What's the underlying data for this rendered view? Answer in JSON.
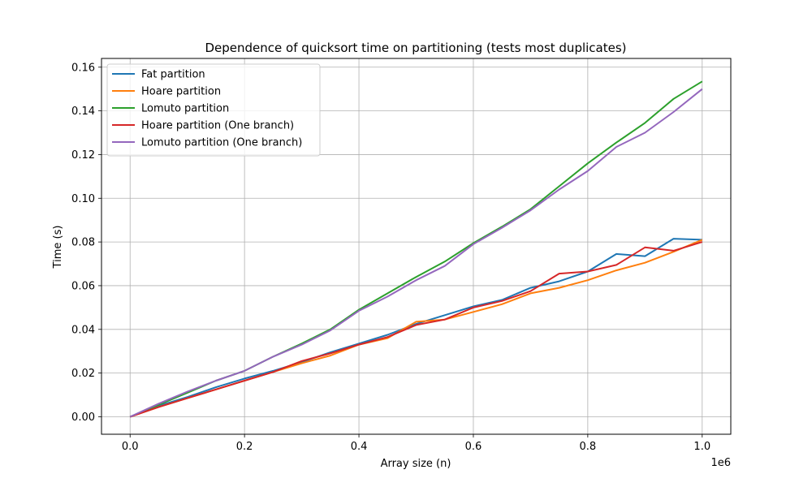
{
  "chart_data": {
    "type": "line",
    "title": "Dependence of quicksort time on partitioning (tests most duplicates)",
    "xlabel": "Array size (n)",
    "ylabel": "Time (s)",
    "x_offset_label": "1e6",
    "xlim": [
      -0.05,
      1.05
    ],
    "ylim": [
      -0.008,
      0.164
    ],
    "x_ticks": [
      0.0,
      0.2,
      0.4,
      0.6,
      0.8,
      1.0
    ],
    "x_tick_labels": [
      "0.0",
      "0.2",
      "0.4",
      "0.6",
      "0.8",
      "1.0"
    ],
    "y_ticks": [
      0.0,
      0.02,
      0.04,
      0.06,
      0.08,
      0.1,
      0.12,
      0.14,
      0.16
    ],
    "y_tick_labels": [
      "0.00",
      "0.02",
      "0.04",
      "0.06",
      "0.08",
      "0.10",
      "0.12",
      "0.14",
      "0.16"
    ],
    "grid": true,
    "legend_position": "top-left",
    "x": [
      0.0,
      0.05,
      0.1,
      0.15,
      0.2,
      0.25,
      0.3,
      0.35,
      0.4,
      0.45,
      0.5,
      0.55,
      0.6,
      0.65,
      0.7,
      0.75,
      0.8,
      0.85,
      0.9,
      0.95,
      1.0
    ],
    "series": [
      {
        "name": "Fat partition",
        "color": "#1f77b4",
        "values": [
          0.0,
          0.005,
          0.009,
          0.0135,
          0.0175,
          0.021,
          0.025,
          0.0295,
          0.0335,
          0.0375,
          0.0425,
          0.0465,
          0.0505,
          0.0535,
          0.059,
          0.062,
          0.0665,
          0.0745,
          0.0735,
          0.0815,
          0.081
        ]
      },
      {
        "name": "Hoare partition",
        "color": "#ff7f0e",
        "values": [
          0.0,
          0.0045,
          0.0085,
          0.0125,
          0.0165,
          0.0205,
          0.0245,
          0.028,
          0.033,
          0.036,
          0.0435,
          0.0445,
          0.048,
          0.0515,
          0.0565,
          0.059,
          0.0625,
          0.067,
          0.0705,
          0.0755,
          0.081
        ]
      },
      {
        "name": "Lomuto partition",
        "color": "#2ca02c",
        "values": [
          0.0,
          0.0055,
          0.011,
          0.0165,
          0.021,
          0.0275,
          0.0335,
          0.04,
          0.049,
          0.0565,
          0.064,
          0.071,
          0.0795,
          0.087,
          0.095,
          0.1055,
          0.116,
          0.1255,
          0.1345,
          0.1455,
          0.1535
        ]
      },
      {
        "name": "Hoare partition (One branch)",
        "color": "#d62728",
        "values": [
          0.0,
          0.0045,
          0.0085,
          0.0125,
          0.0165,
          0.0205,
          0.0255,
          0.029,
          0.033,
          0.0365,
          0.042,
          0.0445,
          0.05,
          0.053,
          0.0575,
          0.0655,
          0.0665,
          0.0695,
          0.0775,
          0.076,
          0.08
        ]
      },
      {
        "name": "Lomuto partition (One branch)",
        "color": "#9467bd",
        "values": [
          0.0,
          0.006,
          0.0115,
          0.0165,
          0.021,
          0.0275,
          0.033,
          0.0395,
          0.0485,
          0.055,
          0.0625,
          0.069,
          0.079,
          0.0865,
          0.0945,
          0.104,
          0.1125,
          0.1235,
          0.13,
          0.1395,
          0.15
        ]
      }
    ]
  }
}
